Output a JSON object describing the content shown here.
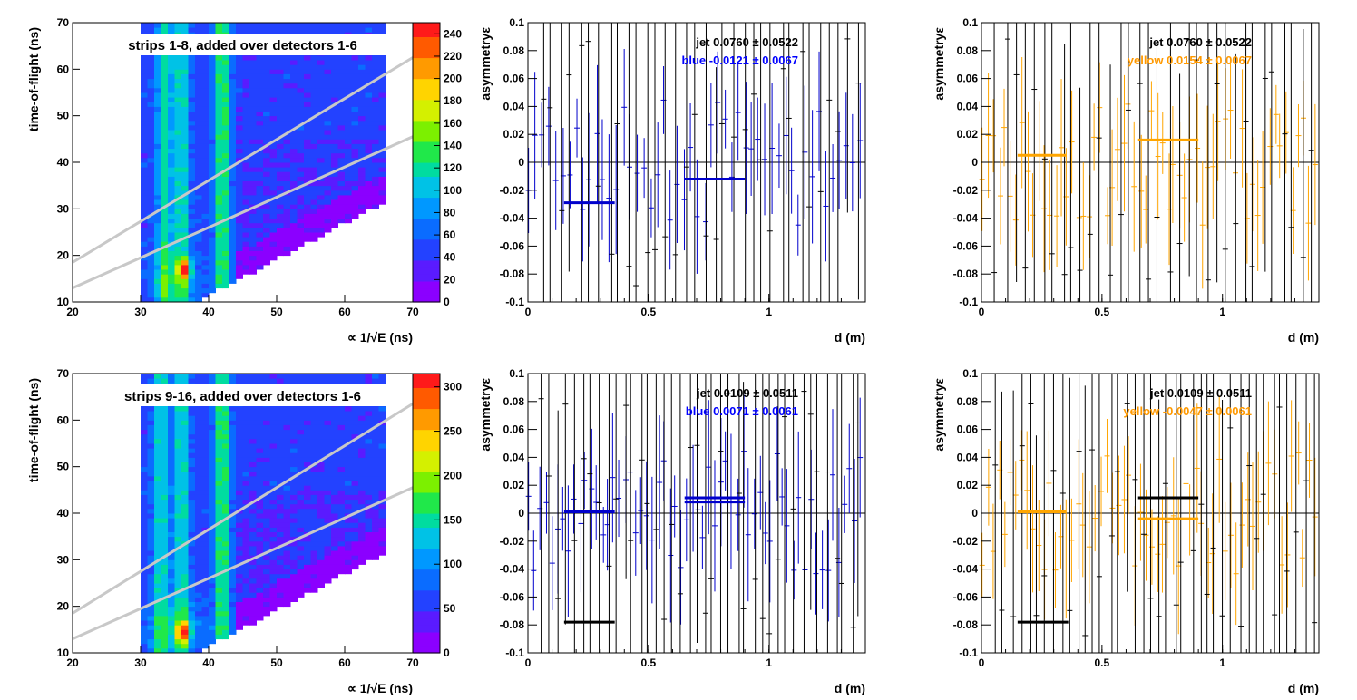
{
  "colors": {
    "frame": "#000000",
    "blue": "#0000cc",
    "blue_text": "#0000ff",
    "yellow": "#ffa500",
    "yellow_text": "#ff9900",
    "jet": "#000000",
    "band_lines": "#c8c8c8",
    "palette": [
      "#8b00ff",
      "#5a1bff",
      "#2342ff",
      "#0a6cff",
      "#0098ff",
      "#00c2e6",
      "#00dca0",
      "#20e84a",
      "#7cf000",
      "#d4f000",
      "#ffd400",
      "#ff9a00",
      "#ff5a00",
      "#ff1a1a"
    ]
  },
  "chart_data": [
    {
      "type": "heatmap",
      "title": "strips 1-8, added over detectors 1-6",
      "xlabel": "∝ 1/√E (ns)",
      "ylabel": "time-of-flight (ns)",
      "xlim": [
        20,
        70
      ],
      "ylim": [
        10,
        70
      ],
      "xticks": [
        20,
        30,
        40,
        50,
        60,
        70
      ],
      "yticks": [
        10,
        20,
        30,
        40,
        50,
        60,
        70
      ],
      "colorbar": {
        "max": 250,
        "ticks": [
          0,
          20,
          40,
          60,
          80,
          100,
          120,
          140,
          160,
          180,
          200,
          220,
          240
        ]
      },
      "populated_x_range": [
        30,
        66
      ],
      "vertical_bands_x": [
        33.5,
        36,
        42
      ],
      "hot_spot": [
        36.5,
        17
      ],
      "grey_lines": [
        {
          "x": [
            20,
            70
          ],
          "y": [
            18.5,
            62.5
          ]
        },
        {
          "x": [
            20,
            70
          ],
          "y": [
            13,
            45.5
          ]
        }
      ]
    },
    {
      "type": "scatter",
      "xlabel": "d (m)",
      "ylabel": "asymmetryε",
      "xlim": [
        0,
        1.4
      ],
      "ylim": [
        -0.1,
        0.1
      ],
      "xticks": [
        "0",
        "0.5",
        "1"
      ],
      "yticks": [
        "-0.1",
        "-0.08",
        "-0.06",
        "-0.04",
        "-0.02",
        "0",
        "0.02",
        "0.04",
        "0.06",
        "0.08",
        "0.1"
      ],
      "annotations": [
        {
          "label": "jet",
          "value": "0.0760",
          "error": "0.0522",
          "color": "#000000"
        },
        {
          "label": "blue",
          "value": "-0.0121",
          "error": "0.0067",
          "color": "#0000ff"
        }
      ],
      "series": [
        {
          "name": "blue",
          "color": "#0000cc",
          "error_bar_count": 50,
          "average_segments": [
            {
              "x": [
                0.15,
                0.36
              ],
              "y": -0.029
            },
            {
              "x": [
                0.65,
                0.9
              ],
              "y": -0.012
            }
          ]
        },
        {
          "name": "jet",
          "color": "#000000",
          "error_bar_count": 34,
          "average_segments": []
        }
      ],
      "seed": 11
    },
    {
      "type": "scatter",
      "xlabel": "d (m)",
      "ylabel": "asymmetryε",
      "xlim": [
        0,
        1.4
      ],
      "ylim": [
        -0.1,
        0.1
      ],
      "xticks": [
        "0",
        "0.5",
        "1"
      ],
      "yticks": [
        "-0.1",
        "-0.08",
        "-0.06",
        "-0.04",
        "-0.02",
        "0",
        "0.02",
        "0.04",
        "0.06",
        "0.08",
        "0.1"
      ],
      "annotations": [
        {
          "label": "jet",
          "value": "0.0760",
          "error": "0.0522",
          "color": "#000000"
        },
        {
          "label": "yellow",
          "value": "0.0154",
          "error": "0.0067",
          "color": "#ff9900"
        }
      ],
      "series": [
        {
          "name": "yellow",
          "color": "#ffa500",
          "error_bar_count": 60,
          "average_segments": [
            {
              "x": [
                0.15,
                0.35
              ],
              "y": 0.005
            },
            {
              "x": [
                0.65,
                0.9
              ],
              "y": 0.016
            }
          ]
        },
        {
          "name": "jet",
          "color": "#000000",
          "error_bar_count": 34,
          "average_segments": []
        }
      ],
      "seed": 23
    },
    {
      "type": "heatmap",
      "title": "strips 9-16, added over detectors 1-6",
      "xlabel": "∝ 1/√E (ns)",
      "ylabel": "time-of-flight (ns)",
      "xlim": [
        20,
        70
      ],
      "ylim": [
        10,
        70
      ],
      "xticks": [
        20,
        30,
        40,
        50,
        60,
        70
      ],
      "yticks": [
        10,
        20,
        30,
        40,
        50,
        60,
        70
      ],
      "colorbar": {
        "max": 315,
        "ticks": [
          0,
          50,
          100,
          150,
          200,
          250,
          300
        ]
      },
      "populated_x_range": [
        30,
        66
      ],
      "vertical_bands_x": [
        33,
        36,
        42
      ],
      "hot_spot": [
        36.3,
        14.5
      ],
      "grey_lines": [
        {
          "x": [
            20,
            70
          ],
          "y": [
            18.5,
            63.5
          ]
        },
        {
          "x": [
            20,
            70
          ],
          "y": [
            13,
            45.5
          ]
        }
      ]
    },
    {
      "type": "scatter",
      "xlabel": "d (m)",
      "ylabel": "asymmetryε",
      "xlim": [
        0,
        1.4
      ],
      "ylim": [
        -0.1,
        0.1
      ],
      "xticks": [
        "0",
        "0.5",
        "1"
      ],
      "yticks": [
        "-0.1",
        "-0.08",
        "-0.06",
        "-0.04",
        "-0.02",
        "0",
        "0.02",
        "0.04",
        "0.06",
        "0.08",
        "0.1"
      ],
      "annotations": [
        {
          "label": "jet",
          "value": "0.0109",
          "error": "0.0511",
          "color": "#000000"
        },
        {
          "label": "blue",
          "value": "0.0071",
          "error": "0.0061",
          "color": "#0000ff"
        }
      ],
      "series": [
        {
          "name": "blue",
          "color": "#0000cc",
          "error_bar_count": 60,
          "average_segments": [
            {
              "x": [
                0.15,
                0.36
              ],
              "y": 0.001
            },
            {
              "x": [
                0.65,
                0.9
              ],
              "y": 0.008
            },
            {
              "x": [
                0.65,
                0.9
              ],
              "y": 0.011
            }
          ]
        },
        {
          "name": "jet",
          "color": "#000000",
          "error_bar_count": 40,
          "average_segments": [
            {
              "x": [
                0.15,
                0.36
              ],
              "y": -0.078
            }
          ]
        }
      ],
      "seed": 37
    },
    {
      "type": "scatter",
      "xlabel": "d (m)",
      "ylabel": "asymmetryε",
      "xlim": [
        0,
        1.4
      ],
      "ylim": [
        -0.1,
        0.1
      ],
      "xticks": [
        "0",
        "0.5",
        "1"
      ],
      "yticks": [
        "-0.1",
        "-0.08",
        "-0.06",
        "-0.04",
        "-0.02",
        "0",
        "0.02",
        "0.04",
        "0.06",
        "0.08",
        "0.1"
      ],
      "annotations": [
        {
          "label": "jet",
          "value": "0.0109",
          "error": "0.0511",
          "color": "#000000"
        },
        {
          "label": "yellow",
          "value": "-0.0047",
          "error": "0.0061",
          "color": "#ff9900"
        }
      ],
      "series": [
        {
          "name": "yellow",
          "color": "#ffa500",
          "error_bar_count": 60,
          "average_segments": [
            {
              "x": [
                0.15,
                0.35
              ],
              "y": 0.001
            },
            {
              "x": [
                0.65,
                0.9
              ],
              "y": -0.004
            }
          ]
        },
        {
          "name": "jet",
          "color": "#000000",
          "error_bar_count": 40,
          "average_segments": [
            {
              "x": [
                0.15,
                0.36
              ],
              "y": -0.078
            },
            {
              "x": [
                0.65,
                0.9
              ],
              "y": 0.011
            }
          ]
        }
      ],
      "seed": 53
    }
  ]
}
